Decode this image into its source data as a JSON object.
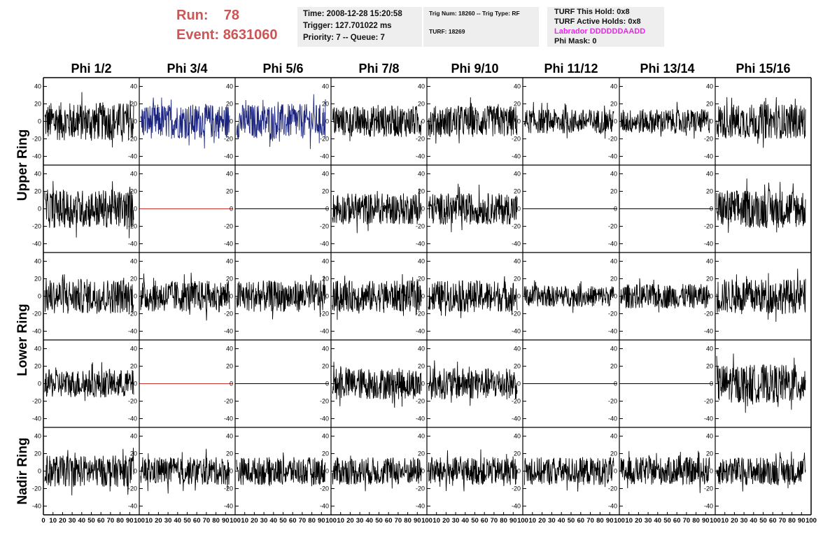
{
  "header": {
    "run_label": "Run:",
    "run_value": "78",
    "event_label": "Event:",
    "event_value": "8631060"
  },
  "info_left": {
    "time": "Time: 2008-12-28 15:20:58",
    "trigger": "Trigger: 127.701022 ms",
    "priority": "Priority: 7 -- Queue: 7"
  },
  "info_mid": {
    "trig": "Trig Num: 18260 -- Trig Type: RF",
    "turf": "TURF: 18269"
  },
  "info_right": {
    "hold": "TURF This Hold: 0x8",
    "active": "TURF Active Holds: 0x8",
    "labrador": "Labrador DDDDDDAADD",
    "phimask": "Phi Mask: 0"
  },
  "colors": {
    "run_text": "#cc5555",
    "labrador": "#ee22ee",
    "trace_default": "#000000",
    "trace_blue": "#1a237e",
    "flat_red": "#cc3333",
    "box_bg": "#eeeeee"
  },
  "chart_data": {
    "type": "line",
    "title": "",
    "columns": [
      "Phi 1/2",
      "Phi 3/4",
      "Phi 5/6",
      "Phi 7/8",
      "Phi 9/10",
      "Phi 11/12",
      "Phi 13/14",
      "Phi 15/16"
    ],
    "rows": [
      "Upper Ring",
      "",
      "Lower Ring",
      "",
      "Nadir Ring"
    ],
    "ylim": [
      -50,
      50
    ],
    "xlim": [
      0,
      100
    ],
    "y_ticks": [
      -40,
      -20,
      0,
      20,
      40
    ],
    "x_tick_labels": [
      "0",
      "10",
      "20",
      "30",
      "40",
      "50",
      "60",
      "70",
      "80",
      "90",
      "100"
    ],
    "panels": [
      [
        {
          "trace": "noise",
          "amp": 22,
          "color": "#000000"
        },
        {
          "trace": "noise",
          "amp": 20,
          "color": "#1a237e"
        },
        {
          "trace": "noise",
          "amp": 20,
          "color": "#1a237e"
        },
        {
          "trace": "noise",
          "amp": 18,
          "color": "#000000"
        },
        {
          "trace": "noise",
          "amp": 18,
          "color": "#000000"
        },
        {
          "trace": "noise",
          "amp": 14,
          "color": "#000000"
        },
        {
          "trace": "noise",
          "amp": 14,
          "color": "#000000"
        },
        {
          "trace": "noise",
          "amp": 20,
          "color": "#000000"
        }
      ],
      [
        {
          "trace": "noise",
          "amp": 22,
          "color": "#000000"
        },
        {
          "trace": "flat",
          "amp": 0,
          "color": "#cc3333"
        },
        {
          "trace": "flat",
          "amp": 0,
          "color": "#000000"
        },
        {
          "trace": "noise",
          "amp": 18,
          "color": "#000000"
        },
        {
          "trace": "noise",
          "amp": 18,
          "color": "#000000"
        },
        {
          "trace": "flat",
          "amp": 0,
          "color": "#000000"
        },
        {
          "trace": "flat",
          "amp": 0,
          "color": "#000000"
        },
        {
          "trace": "noise",
          "amp": 22,
          "color": "#000000"
        }
      ],
      [
        {
          "trace": "noise",
          "amp": 20,
          "color": "#000000"
        },
        {
          "trace": "noise",
          "amp": 18,
          "color": "#000000"
        },
        {
          "trace": "noise",
          "amp": 18,
          "color": "#000000"
        },
        {
          "trace": "noise",
          "amp": 18,
          "color": "#000000"
        },
        {
          "trace": "noise",
          "amp": 18,
          "color": "#000000"
        },
        {
          "trace": "noise",
          "amp": 12,
          "color": "#000000"
        },
        {
          "trace": "noise",
          "amp": 14,
          "color": "#000000"
        },
        {
          "trace": "noise",
          "amp": 20,
          "color": "#000000"
        }
      ],
      [
        {
          "trace": "noise",
          "amp": 16,
          "color": "#000000"
        },
        {
          "trace": "flat",
          "amp": 0,
          "color": "#cc3333"
        },
        {
          "trace": "flat",
          "amp": 0,
          "color": "#000000"
        },
        {
          "trace": "noise",
          "amp": 18,
          "color": "#000000"
        },
        {
          "trace": "noise",
          "amp": 18,
          "color": "#000000"
        },
        {
          "trace": "flat",
          "amp": 0,
          "color": "#000000"
        },
        {
          "trace": "flat",
          "amp": 0,
          "color": "#000000"
        },
        {
          "trace": "noise",
          "amp": 22,
          "color": "#000000"
        }
      ],
      [
        {
          "trace": "noise",
          "amp": 18,
          "color": "#000000"
        },
        {
          "trace": "noise",
          "amp": 16,
          "color": "#000000"
        },
        {
          "trace": "noise",
          "amp": 16,
          "color": "#000000"
        },
        {
          "trace": "noise",
          "amp": 16,
          "color": "#000000"
        },
        {
          "trace": "noise",
          "amp": 16,
          "color": "#000000"
        },
        {
          "trace": "noise",
          "amp": 16,
          "color": "#000000"
        },
        {
          "trace": "noise",
          "amp": 16,
          "color": "#000000"
        },
        {
          "trace": "noise",
          "amp": 16,
          "color": "#000000"
        }
      ]
    ]
  }
}
